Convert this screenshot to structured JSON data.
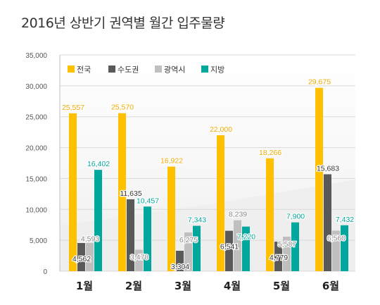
{
  "chart_data": {
    "type": "bar",
    "title": "2016년 상반기 권역별 월간 입주물량",
    "categories": [
      "1월",
      "2월",
      "3월",
      "4월",
      "5월",
      "6월"
    ],
    "series": [
      {
        "name": "전국",
        "color": "#FFC000",
        "values": [
          25557,
          25570,
          16922,
          22000,
          18266,
          29675
        ],
        "labels": [
          "25,557",
          "25,570",
          "16,922",
          "22,000",
          "18,266",
          "29,675"
        ]
      },
      {
        "name": "수도권",
        "color": "#595959",
        "values": [
          4562,
          11635,
          3304,
          6541,
          4779,
          15683
        ],
        "labels": [
          "4,562",
          "11,635",
          "3,304",
          "6,541",
          "4,779",
          "15,683"
        ]
      },
      {
        "name": "광역시",
        "color": "#BFBFBF",
        "values": [
          4593,
          3478,
          6275,
          8239,
          5587,
          6560
        ],
        "labels": [
          "4,593",
          "3,478",
          "6,275",
          "8,239",
          "5,587",
          "6,560"
        ]
      },
      {
        "name": "지방",
        "color": "#00A79D",
        "values": [
          16402,
          10457,
          7343,
          7220,
          7900,
          7432
        ],
        "labels": [
          "16,402",
          "10,457",
          "7,343",
          "7,220",
          "7,900",
          "7,432"
        ]
      }
    ],
    "ylim": [
      0,
      35000
    ],
    "yticks": [
      0,
      5000,
      10000,
      15000,
      20000,
      25000,
      30000,
      35000
    ],
    "ytick_labels": [
      "0",
      "5,000",
      "10,000",
      "15,000",
      "20,000",
      "25,000",
      "30,000",
      "35,000"
    ],
    "legend_position": "top-left",
    "grid": true,
    "xlabel": "",
    "ylabel": ""
  }
}
